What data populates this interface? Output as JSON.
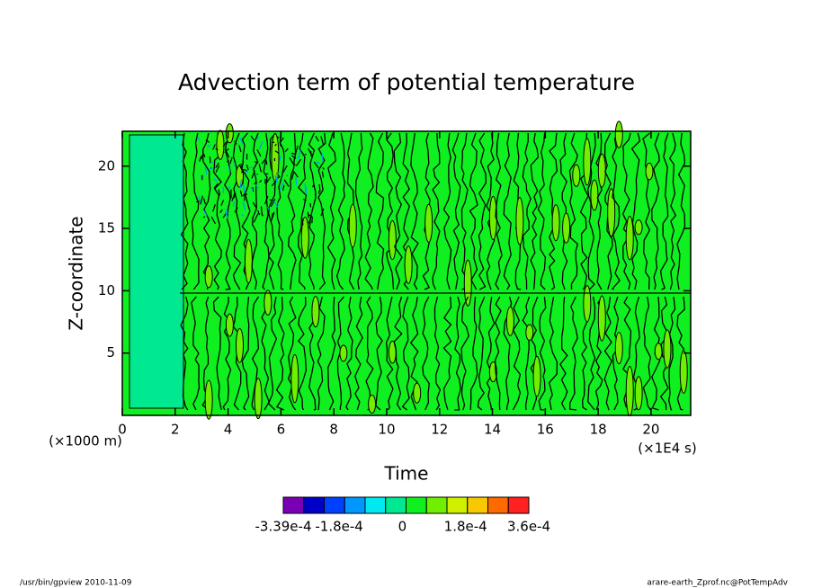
{
  "chart_data": {
    "type": "contour",
    "title": "Advection term of potential temperature",
    "x_label": "Time",
    "y_label": "Z-coordinate",
    "x_unit": "(×1E4 s)",
    "y_unit": "(×1000 m)",
    "xlim": [
      0,
      21.5
    ],
    "xticks": [
      0,
      2,
      4,
      6,
      8,
      10,
      12,
      14,
      16,
      18,
      20
    ],
    "ylim": [
      0,
      22.8
    ],
    "yticks": [
      5,
      10,
      15,
      20
    ],
    "colorbar": {
      "colors": [
        "#7a00b4",
        "#0000c8",
        "#0040ff",
        "#0098ff",
        "#00e8f0",
        "#00e890",
        "#10f020",
        "#70f000",
        "#d0f000",
        "#f8c800",
        "#ff6a00",
        "#ff2020"
      ],
      "lim": [
        -0.000339,
        0.00036
      ],
      "ticks": [
        {
          "value": -0.000339,
          "label": "-3.39e-4"
        },
        {
          "value": -0.00018,
          "label": "-1.8e-4"
        },
        {
          "value": 0,
          "label": "0"
        },
        {
          "value": 0.00018,
          "label": "1.8e-4"
        },
        {
          "value": 0.00036,
          "label": "3.6e-4"
        }
      ]
    },
    "footer_left": "/usr/bin/gpview  2010-11-09",
    "footer_right": "arare-earth_Zprof.nc@PotTempAdv"
  }
}
